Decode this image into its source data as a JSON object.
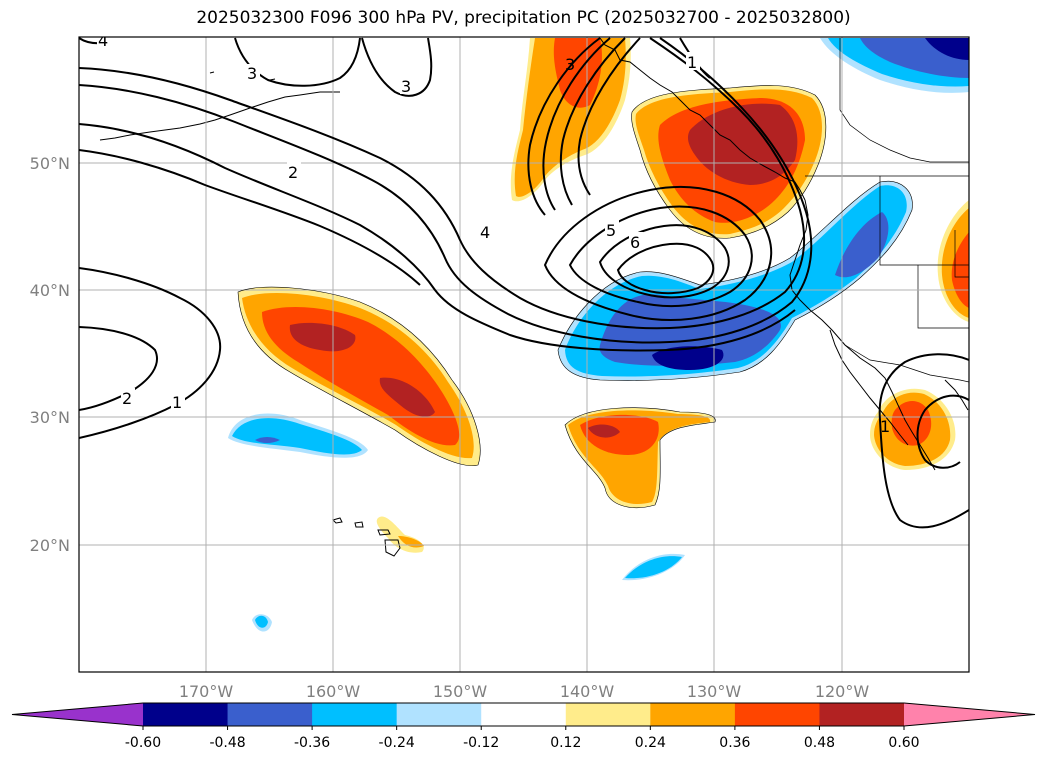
{
  "title": "2025032300 F096 300 hPa PV, precipitation PC (2025032700 - 2025032800)",
  "longitude_labels": [
    "170°W",
    "160°W",
    "150°W",
    "140°W",
    "130°W",
    "120°W"
  ],
  "latitude_labels": [
    "50°N",
    "40°N",
    "30°N",
    "20°N"
  ],
  "contour_labels": [
    {
      "text": "4"
    },
    {
      "text": "3"
    },
    {
      "text": "3"
    },
    {
      "text": "2"
    },
    {
      "text": "2"
    },
    {
      "text": "1"
    },
    {
      "text": "4"
    },
    {
      "text": "3"
    },
    {
      "text": "1"
    },
    {
      "text": "5"
    },
    {
      "text": "6"
    },
    {
      "text": "1"
    }
  ],
  "colorbar": {
    "ticks": [
      "-0.60",
      "-0.48",
      "-0.36",
      "-0.24",
      "-0.12",
      "0.12",
      "0.24",
      "0.36",
      "0.48",
      "0.60"
    ],
    "colors": [
      "#9932cc",
      "#00008b",
      "#3a5fcd",
      "#00bfff",
      "#b0e2ff",
      "#ffffff",
      "#ffec8b",
      "#ffa500",
      "#ff4500",
      "#b22222",
      "#ff82ab"
    ]
  },
  "colors": {
    "pos_012": "#ffec8b",
    "pos_024": "#ffa500",
    "pos_036": "#ff4500",
    "pos_048": "#b22222",
    "neg_012": "#b0e2ff",
    "neg_024": "#00bfff",
    "neg_036": "#3a5fcd",
    "neg_048": "#00008b",
    "grid": "#b0b0b0",
    "contour": "#000000"
  }
}
